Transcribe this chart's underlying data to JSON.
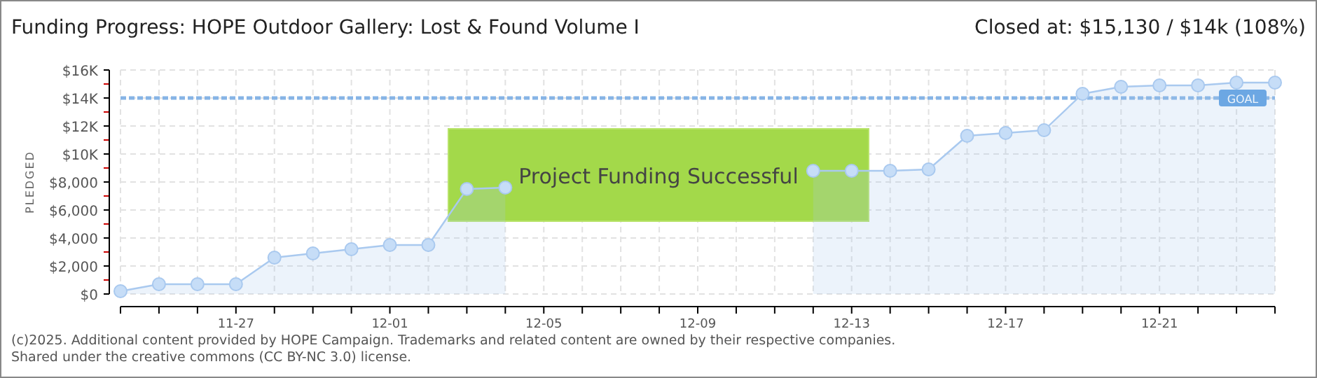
{
  "chart_data": {
    "type": "area",
    "title": "Funding Progress: HOPE Outdoor Gallery: Lost & Found Volume I",
    "subtitle": "Closed at:  $15,130 /  $14k (108%)",
    "ylabel": "PLEDGED",
    "x": [
      "--11-24",
      "--11-25",
      "--11-26",
      "--11-27",
      "--11-28",
      "--11-29",
      "--11-30",
      "--12-01",
      "--12-02",
      "--12-03",
      "--12-04",
      "--12-05",
      "--12-06",
      "--12-07",
      "--12-08",
      "--12-09",
      "--12-10",
      "--12-11",
      "--12-12",
      "--12-13",
      "--12-14",
      "--12-15",
      "--12-16",
      "--12-17",
      "--12-18",
      "--12-19",
      "--12-20",
      "--12-21",
      "--12-22",
      "--12-23",
      "--12-24"
    ],
    "series": [
      {
        "color": "#a9c9ef",
        "values": [
          200,
          700,
          700,
          700,
          2600,
          2900,
          3200,
          3500,
          3500,
          7500,
          7600,
          null,
          null,
          null,
          null,
          null,
          null,
          null,
          8800,
          8800,
          8800,
          8900,
          11300,
          11500,
          11700,
          14300,
          14800,
          14900,
          14900,
          15100,
          15100
        ]
      }
    ],
    "xlim": [
      "--11-24",
      "--12-24"
    ],
    "xticks": [
      {
        "value": "--11-24",
        "label": null
      },
      {
        "value": "--11-25",
        "label": null
      },
      {
        "value": "--11-26",
        "label": null
      },
      {
        "value": "--11-27",
        "label": "11-27"
      },
      {
        "value": "--11-28",
        "label": null
      },
      {
        "value": "--11-29",
        "label": null
      },
      {
        "value": "--11-30",
        "label": null
      },
      {
        "value": "--12-01",
        "label": "12-01"
      },
      {
        "value": "--12-02",
        "label": null
      },
      {
        "value": "--12-03",
        "label": null
      },
      {
        "value": "--12-04",
        "label": null
      },
      {
        "value": "--12-05",
        "label": "12-05"
      },
      {
        "value": "--12-06",
        "label": null
      },
      {
        "value": "--12-07",
        "label": null
      },
      {
        "value": "--12-08",
        "label": null
      },
      {
        "value": "--12-09",
        "label": "12-09"
      },
      {
        "value": "--12-10",
        "label": null
      },
      {
        "value": "--12-11",
        "label": null
      },
      {
        "value": "--12-12",
        "label": null
      },
      {
        "value": "--12-13",
        "label": "12-13"
      },
      {
        "value": "--12-14",
        "label": null
      },
      {
        "value": "--12-15",
        "label": null
      },
      {
        "value": "--12-16",
        "label": null
      },
      {
        "value": "--12-17",
        "label": "12-17"
      },
      {
        "value": "--12-18",
        "label": null
      },
      {
        "value": "--12-19",
        "label": null
      },
      {
        "value": "--12-20",
        "label": null
      },
      {
        "value": "--12-21",
        "label": "12-21"
      },
      {
        "value": "--12-22",
        "label": null
      },
      {
        "value": "--12-23",
        "label": null
      },
      {
        "value": "--12-24",
        "label": null
      }
    ],
    "ylim": [
      0,
      16000
    ],
    "yticks": [
      {
        "value": 0,
        "label": "$0"
      },
      {
        "value": 1000,
        "label": null
      },
      {
        "value": 2000,
        "label": "$2,000"
      },
      {
        "value": 3000,
        "label": null
      },
      {
        "value": 4000,
        "label": "$4,000"
      },
      {
        "value": 5000,
        "label": null
      },
      {
        "value": 6000,
        "label": "$6,000"
      },
      {
        "value": 7000,
        "label": null
      },
      {
        "value": 8000,
        "label": "$8,000"
      },
      {
        "value": 9000,
        "label": null
      },
      {
        "value": 10000,
        "label": "$10K"
      },
      {
        "value": 11000,
        "label": null
      },
      {
        "value": 12000,
        "label": "$12K"
      },
      {
        "value": 13000,
        "label": null
      },
      {
        "value": 14000,
        "label": "$14K"
      },
      {
        "value": 15000,
        "label": null
      },
      {
        "value": 16000,
        "label": "$16K"
      }
    ],
    "grid": true,
    "marker": "circle",
    "line_style": "solid",
    "ref_lines": [
      {
        "axis": "y",
        "value": 14000,
        "label": "GOAL",
        "color": "#86b4e6",
        "line_style": "dashed"
      }
    ],
    "annotations": [
      "Project Funding Successful",
      "(c)2025. Additional content provided by HOPE Campaign. Trademarks and related content are owned by their respective companies.",
      "Shared under the creative commons (CC BY-NC 3.0) license."
    ]
  }
}
